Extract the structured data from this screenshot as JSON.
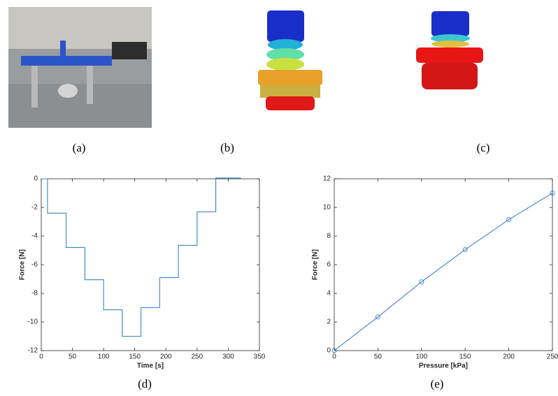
{
  "panel_labels": [
    "(a)",
    "(b)",
    "(c)",
    "(d)",
    "(e)"
  ],
  "chart_data": [
    {
      "type": "line",
      "xlabel": "Time [s]",
      "ylabel": "Force [N]",
      "x": [
        0,
        10,
        10,
        40,
        40,
        70,
        70,
        100,
        100,
        130,
        130,
        160,
        160,
        190,
        190,
        220,
        220,
        250,
        250,
        280,
        280,
        320
      ],
      "values": [
        0,
        0,
        -2.4,
        -2.4,
        -4.8,
        -4.8,
        -7.05,
        -7.05,
        -9.15,
        -9.15,
        -11.0,
        -11.0,
        -9.0,
        -9.0,
        -6.9,
        -6.9,
        -4.65,
        -4.65,
        -2.3,
        -2.3,
        0.05,
        0.05
      ],
      "color": "#3b83c4",
      "marker": "none",
      "xlim": [
        0,
        350
      ],
      "ylim": [
        -12,
        0
      ],
      "xticks": [
        0,
        50,
        100,
        150,
        200,
        250,
        300,
        350
      ],
      "yticks": [
        -12,
        -10,
        -8,
        -6,
        -4,
        -2,
        0
      ]
    },
    {
      "type": "line",
      "xlabel": "Pressure [kPa]",
      "ylabel": "Force [N]",
      "x": [
        0,
        50,
        100,
        150,
        200,
        250
      ],
      "values": [
        0,
        2.35,
        4.8,
        7.05,
        9.15,
        11.0
      ],
      "color": "#3b83c4",
      "marker": "circle",
      "xlim": [
        0,
        250
      ],
      "ylim": [
        0,
        12
      ],
      "xticks": [
        0,
        50,
        100,
        150,
        200,
        250
      ],
      "yticks": [
        0,
        2,
        4,
        6,
        8,
        10,
        12
      ]
    }
  ]
}
